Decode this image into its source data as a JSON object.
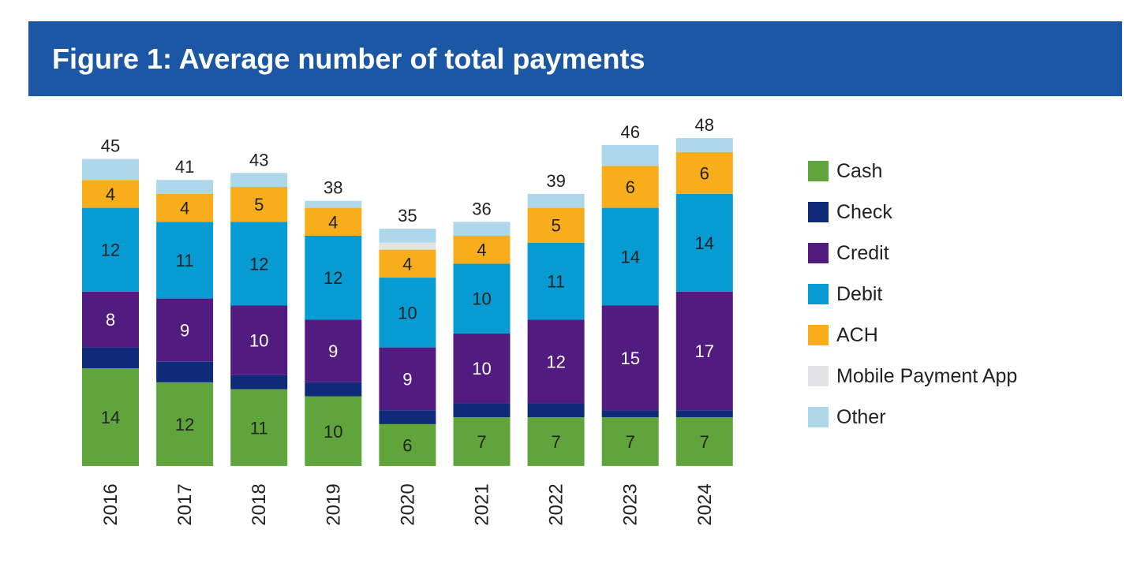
{
  "header": {
    "title": "Figure 1: Average number of total payments"
  },
  "chart_data": {
    "type": "bar",
    "stacked": true,
    "title": "Figure 1: Average number of total payments",
    "xlabel": "",
    "ylabel": "",
    "ylim": [
      0,
      48
    ],
    "grid": false,
    "legend_position": "right",
    "categories": [
      "2016",
      "2017",
      "2018",
      "2019",
      "2020",
      "2021",
      "2022",
      "2023",
      "2024"
    ],
    "totals": [
      45,
      41,
      43,
      38,
      35,
      36,
      39,
      46,
      48
    ],
    "series": [
      {
        "name": "Cash",
        "color": "#5fa53c",
        "label_color": "#222222",
        "values": [
          14,
          12,
          11,
          10,
          6,
          7,
          7,
          7,
          7
        ],
        "labels": [
          "14",
          "12",
          "11",
          "10",
          "6",
          "7",
          "7",
          "7",
          "7"
        ]
      },
      {
        "name": "Check",
        "color": "#0e2a78",
        "label_color": "#ffffff",
        "values": [
          3,
          3,
          2,
          2,
          2,
          2,
          2,
          1,
          1
        ],
        "labels": [
          "",
          "",
          "",
          "",
          "",
          "",
          "",
          "",
          ""
        ]
      },
      {
        "name": "Credit",
        "color": "#521b80",
        "label_color": "#ffffff",
        "values": [
          8,
          9,
          10,
          9,
          9,
          10,
          12,
          15,
          17
        ],
        "labels": [
          "8",
          "9",
          "10",
          "9",
          "9",
          "10",
          "12",
          "15",
          "17"
        ]
      },
      {
        "name": "Debit",
        "color": "#079bd3",
        "label_color": "#222222",
        "values": [
          12,
          11,
          12,
          12,
          10,
          10,
          11,
          14,
          14
        ],
        "labels": [
          "12",
          "11",
          "12",
          "12",
          "10",
          "10",
          "11",
          "14",
          "14"
        ]
      },
      {
        "name": "ACH",
        "color": "#f8ae1a",
        "label_color": "#222222",
        "values": [
          4,
          4,
          5,
          4,
          4,
          4,
          5,
          6,
          6
        ],
        "labels": [
          "4",
          "4",
          "5",
          "4",
          "4",
          "4",
          "5",
          "6",
          "6"
        ]
      },
      {
        "name": "Mobile Payment App",
        "color": "#e3e3e6",
        "label_color": "#222222",
        "values": [
          0,
          0,
          0,
          0,
          1,
          0,
          0,
          0,
          0
        ],
        "labels": [
          "",
          "",
          "",
          "",
          "",
          "",
          "",
          "",
          ""
        ]
      },
      {
        "name": "Other",
        "color": "#aed8ea",
        "label_color": "#222222",
        "values": [
          3,
          2,
          2,
          1,
          2,
          2,
          2,
          3,
          2
        ],
        "labels": [
          "",
          "",
          "",
          "",
          "",
          "",
          "",
          "",
          ""
        ]
      }
    ]
  }
}
